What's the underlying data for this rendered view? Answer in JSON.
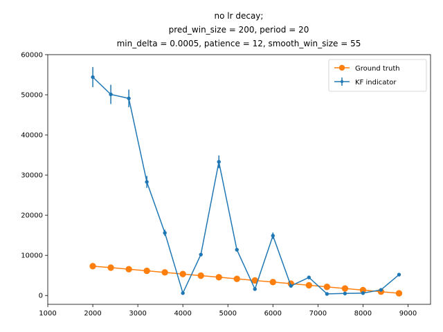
{
  "chart_data": {
    "type": "line",
    "title_lines": [
      "no lr decay;",
      "pred_win_size = 200, period = 20",
      "min_delta = 0.0005, patience = 12, smooth_win_size = 55"
    ],
    "xlabel": "",
    "ylabel": "",
    "xlim": [
      1000,
      9500
    ],
    "ylim": [
      -2200,
      60000
    ],
    "xticks": [
      1000,
      2000,
      3000,
      4000,
      5000,
      6000,
      7000,
      8000,
      9000
    ],
    "yticks": [
      0,
      10000,
      20000,
      30000,
      40000,
      50000,
      60000
    ],
    "grid": false,
    "legend_position": "top-right",
    "series": [
      {
        "name": "Ground truth",
        "color": "#ff7f0e",
        "marker": "circle",
        "x": [
          2000,
          2400,
          2800,
          3200,
          3600,
          4000,
          4400,
          4800,
          5200,
          5600,
          6000,
          6400,
          6800,
          7200,
          7600,
          8000,
          8400,
          8800
        ],
        "y": [
          7300,
          6950,
          6550,
          6150,
          5750,
          5350,
          4950,
          4550,
          4150,
          3750,
          3350,
          2950,
          2550,
          2150,
          1750,
          1350,
          950,
          550
        ]
      },
      {
        "name": "KF indicator",
        "color": "#1f77b4",
        "marker": "dot-errorbar",
        "x": [
          2000,
          2400,
          2800,
          3200,
          3600,
          4000,
          4400,
          4800,
          5200,
          5600,
          6000,
          6400,
          6800,
          7200,
          7600,
          8000,
          8400,
          8800
        ],
        "y": [
          54400,
          50100,
          49100,
          28300,
          15600,
          600,
          10200,
          33300,
          11400,
          1600,
          14900,
          2400,
          4500,
          400,
          500,
          600,
          1400,
          5200
        ],
        "err": [
          2500,
          2400,
          2200,
          1500,
          800,
          100,
          200,
          1600,
          200,
          100,
          800,
          100,
          150,
          50,
          50,
          50,
          80,
          150
        ]
      }
    ]
  }
}
